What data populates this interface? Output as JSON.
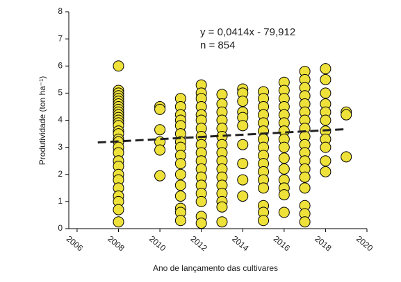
{
  "chart_data": {
    "type": "scatter",
    "x_label": "Ano de lançamento das cultivares",
    "y_label": "Produtividade (ton ha⁻¹)",
    "annotations": [
      "y = 0,0414x - 79,912",
      "n = 854"
    ],
    "xlim": [
      2005.6,
      2020
    ],
    "xticks": [
      2006,
      2008,
      2010,
      2012,
      2014,
      2016,
      2018,
      2020
    ],
    "ylim": [
      0,
      8
    ],
    "yticks": [
      0,
      1,
      2,
      3,
      4,
      5,
      6,
      7,
      8
    ],
    "color": "#eee13a",
    "x": [
      2008,
      2008,
      2008,
      2008,
      2008,
      2008,
      2008,
      2008,
      2008,
      2008,
      2008,
      2008,
      2008,
      2008,
      2008,
      2008,
      2008,
      2008,
      2008,
      2008,
      2008,
      2008,
      2008,
      2008,
      2008,
      2008,
      2008,
      2008,
      2008,
      2008,
      2010,
      2010,
      2010,
      2010,
      2010,
      2010,
      2011,
      2011,
      2011,
      2011,
      2011,
      2011,
      2011,
      2011,
      2011,
      2011,
      2011,
      2011,
      2011,
      2011,
      2011,
      2011,
      2012,
      2012,
      2012,
      2012,
      2012,
      2012,
      2012,
      2012,
      2012,
      2012,
      2012,
      2012,
      2012,
      2012,
      2012,
      2012,
      2012,
      2012,
      2013,
      2013,
      2013,
      2013,
      2013,
      2013,
      2013,
      2013,
      2013,
      2013,
      2013,
      2013,
      2013,
      2013,
      2013,
      2013,
      2014,
      2014,
      2014,
      2014,
      2014,
      2014,
      2014,
      2014,
      2014,
      2014,
      2015,
      2015,
      2015,
      2015,
      2015,
      2015,
      2015,
      2015,
      2015,
      2015,
      2015,
      2015,
      2015,
      2015,
      2015,
      2015,
      2016,
      2016,
      2016,
      2016,
      2016,
      2016,
      2016,
      2016,
      2016,
      2016,
      2016,
      2016,
      2016,
      2016,
      2016,
      2017,
      2017,
      2017,
      2017,
      2017,
      2017,
      2017,
      2017,
      2017,
      2017,
      2017,
      2017,
      2017,
      2017,
      2017,
      2017,
      2017,
      2017,
      2018,
      2018,
      2018,
      2018,
      2018,
      2018,
      2018,
      2018,
      2018,
      2018,
      2018,
      2019,
      2019,
      2019
    ],
    "values": [
      6.0,
      5.1,
      5.0,
      4.9,
      4.8,
      4.7,
      4.6,
      4.5,
      4.4,
      4.3,
      4.2,
      4.1,
      4.0,
      3.9,
      3.8,
      3.6,
      3.5,
      3.3,
      3.2,
      3.0,
      2.8,
      2.5,
      2.3,
      2.0,
      1.8,
      1.5,
      1.2,
      1.0,
      0.7,
      0.25,
      4.5,
      4.4,
      3.65,
      3.2,
      2.9,
      1.95,
      4.8,
      4.5,
      4.2,
      4.0,
      3.8,
      3.5,
      3.2,
      3.0,
      2.7,
      2.4,
      2.0,
      1.6,
      1.2,
      0.75,
      0.6,
      0.3,
      5.3,
      5.0,
      4.8,
      4.5,
      4.2,
      4.0,
      3.7,
      3.4,
      3.1,
      2.8,
      2.5,
      2.2,
      1.9,
      1.6,
      1.3,
      1.0,
      0.45,
      0.2,
      4.95,
      4.6,
      4.3,
      4.0,
      3.7,
      3.4,
      3.1,
      2.8,
      2.5,
      2.2,
      1.9,
      1.6,
      1.3,
      1.0,
      0.8,
      0.25,
      5.15,
      5.0,
      4.7,
      4.3,
      4.1,
      3.8,
      3.1,
      2.4,
      1.8,
      1.2,
      5.05,
      4.8,
      4.5,
      4.2,
      3.9,
      3.6,
      3.3,
      3.0,
      2.7,
      2.4,
      2.1,
      1.8,
      1.5,
      0.85,
      0.6,
      0.3,
      5.4,
      5.1,
      4.8,
      4.5,
      4.2,
      3.9,
      3.6,
      3.3,
      3.0,
      2.6,
      2.2,
      1.8,
      1.5,
      1.25,
      0.6,
      5.8,
      5.5,
      5.2,
      4.9,
      4.6,
      4.3,
      4.0,
      3.7,
      3.4,
      3.1,
      2.8,
      2.5,
      2.2,
      1.9,
      1.5,
      0.85,
      0.55,
      0.25,
      5.9,
      5.5,
      5.0,
      4.6,
      4.3,
      4.0,
      3.6,
      3.3,
      3.0,
      2.5,
      2.1,
      4.3,
      4.2,
      2.65
    ],
    "trendline": {
      "x": [
        2007,
        2019
      ],
      "values": [
        3.18,
        3.67
      ]
    }
  }
}
